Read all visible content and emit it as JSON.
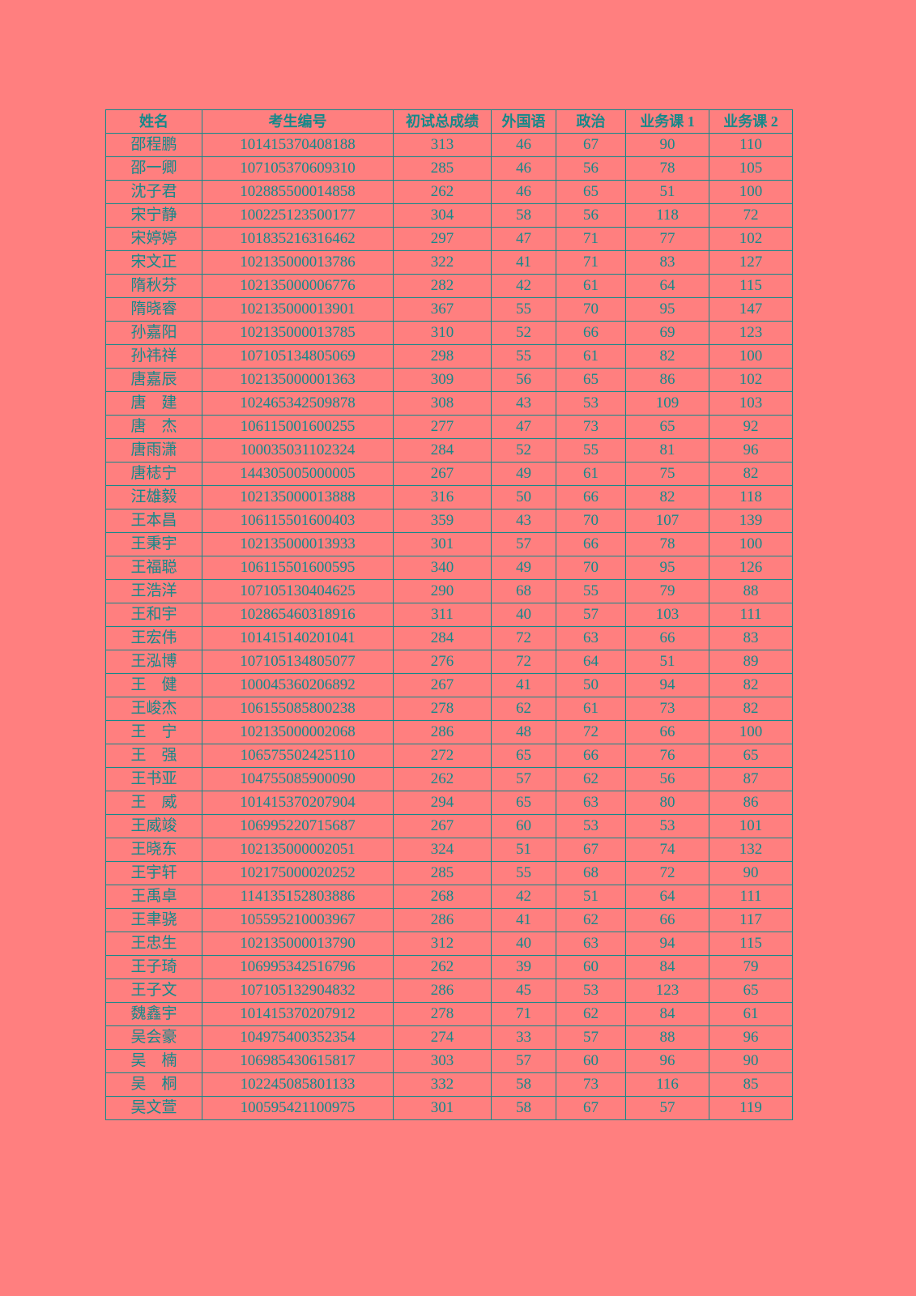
{
  "colors": {
    "background": "#ff7f7f",
    "text": "#15898a",
    "border": "#15898a"
  },
  "table": {
    "headers": [
      "姓名",
      "考生编号",
      "初试总成绩",
      "外国语",
      "政治",
      "业务课 1",
      "业务课 2"
    ],
    "rows": [
      [
        "邵程鹏",
        "101415370408188",
        "313",
        "46",
        "67",
        "90",
        "110"
      ],
      [
        "邵一卿",
        "107105370609310",
        "285",
        "46",
        "56",
        "78",
        "105"
      ],
      [
        "沈子君",
        "102885500014858",
        "262",
        "46",
        "65",
        "51",
        "100"
      ],
      [
        "宋宁静",
        "100225123500177",
        "304",
        "58",
        "56",
        "118",
        "72"
      ],
      [
        "宋婷婷",
        "101835216316462",
        "297",
        "47",
        "71",
        "77",
        "102"
      ],
      [
        "宋文正",
        "102135000013786",
        "322",
        "41",
        "71",
        "83",
        "127"
      ],
      [
        "隋秋芬",
        "102135000006776",
        "282",
        "42",
        "61",
        "64",
        "115"
      ],
      [
        "隋晓睿",
        "102135000013901",
        "367",
        "55",
        "70",
        "95",
        "147"
      ],
      [
        "孙嘉阳",
        "102135000013785",
        "310",
        "52",
        "66",
        "69",
        "123"
      ],
      [
        "孙祎祥",
        "107105134805069",
        "298",
        "55",
        "61",
        "82",
        "100"
      ],
      [
        "唐嘉辰",
        "102135000001363",
        "309",
        "56",
        "65",
        "86",
        "102"
      ],
      [
        "唐　建",
        "102465342509878",
        "308",
        "43",
        "53",
        "109",
        "103"
      ],
      [
        "唐　杰",
        "106115001600255",
        "277",
        "47",
        "73",
        "65",
        "92"
      ],
      [
        "唐雨潇",
        "100035031102324",
        "284",
        "52",
        "55",
        "81",
        "96"
      ],
      [
        "唐梽宁",
        "144305005000005",
        "267",
        "49",
        "61",
        "75",
        "82"
      ],
      [
        "汪雄毅",
        "102135000013888",
        "316",
        "50",
        "66",
        "82",
        "118"
      ],
      [
        "王本昌",
        "106115501600403",
        "359",
        "43",
        "70",
        "107",
        "139"
      ],
      [
        "王秉宇",
        "102135000013933",
        "301",
        "57",
        "66",
        "78",
        "100"
      ],
      [
        "王福聪",
        "106115501600595",
        "340",
        "49",
        "70",
        "95",
        "126"
      ],
      [
        "王浩洋",
        "107105130404625",
        "290",
        "68",
        "55",
        "79",
        "88"
      ],
      [
        "王和宇",
        "102865460318916",
        "311",
        "40",
        "57",
        "103",
        "111"
      ],
      [
        "王宏伟",
        "101415140201041",
        "284",
        "72",
        "63",
        "66",
        "83"
      ],
      [
        "王泓博",
        "107105134805077",
        "276",
        "72",
        "64",
        "51",
        "89"
      ],
      [
        "王　健",
        "100045360206892",
        "267",
        "41",
        "50",
        "94",
        "82"
      ],
      [
        "王峻杰",
        "106155085800238",
        "278",
        "62",
        "61",
        "73",
        "82"
      ],
      [
        "王　宁",
        "102135000002068",
        "286",
        "48",
        "72",
        "66",
        "100"
      ],
      [
        "王　强",
        "106575502425110",
        "272",
        "65",
        "66",
        "76",
        "65"
      ],
      [
        "王书亚",
        "104755085900090",
        "262",
        "57",
        "62",
        "56",
        "87"
      ],
      [
        "王　威",
        "101415370207904",
        "294",
        "65",
        "63",
        "80",
        "86"
      ],
      [
        "王威竣",
        "106995220715687",
        "267",
        "60",
        "53",
        "53",
        "101"
      ],
      [
        "王晓东",
        "102135000002051",
        "324",
        "51",
        "67",
        "74",
        "132"
      ],
      [
        "王宇轩",
        "102175000020252",
        "285",
        "55",
        "68",
        "72",
        "90"
      ],
      [
        "王禹卓",
        "114135152803886",
        "268",
        "42",
        "51",
        "64",
        "111"
      ],
      [
        "王聿骁",
        "105595210003967",
        "286",
        "41",
        "62",
        "66",
        "117"
      ],
      [
        "王忠生",
        "102135000013790",
        "312",
        "40",
        "63",
        "94",
        "115"
      ],
      [
        "王子琦",
        "106995342516796",
        "262",
        "39",
        "60",
        "84",
        "79"
      ],
      [
        "王子文",
        "107105132904832",
        "286",
        "45",
        "53",
        "123",
        "65"
      ],
      [
        "魏鑫宇",
        "101415370207912",
        "278",
        "71",
        "62",
        "84",
        "61"
      ],
      [
        "吴会豪",
        "104975400352354",
        "274",
        "33",
        "57",
        "88",
        "96"
      ],
      [
        "吴　楠",
        "106985430615817",
        "303",
        "57",
        "60",
        "96",
        "90"
      ],
      [
        "吴　桐",
        "102245085801133",
        "332",
        "58",
        "73",
        "116",
        "85"
      ],
      [
        "吴文萱",
        "100595421100975",
        "301",
        "58",
        "67",
        "57",
        "119"
      ]
    ]
  }
}
